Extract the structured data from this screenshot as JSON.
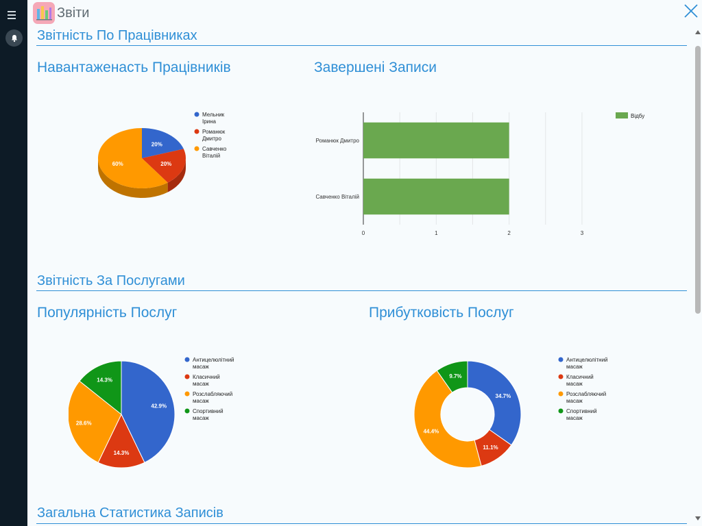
{
  "app": {
    "title": "Звіти"
  },
  "sections": {
    "employees": "Звітність По Працівниках",
    "services": "Звітність За Послугами",
    "general": "Загальна Статистика Записів"
  },
  "chart_data": [
    {
      "id": "workload",
      "type": "pie",
      "title": "Навантаженасть Працівників",
      "categories": [
        "Мельник Ірина",
        "Романюк Дмитро",
        "Савченко Віталій"
      ],
      "values": [
        20,
        20,
        60
      ],
      "labels": [
        "20%",
        "20%",
        "60%"
      ],
      "colors": [
        "#3366cc",
        "#dc3912",
        "#ff9900"
      ],
      "legend": "right"
    },
    {
      "id": "completed",
      "type": "bar",
      "title": "Завершені Записи",
      "categories": [
        "Романюк Дмитро",
        "Савченко Віталій"
      ],
      "series": [
        {
          "name": "Відбувся",
          "values": [
            2,
            2
          ],
          "color": "#6aa84f"
        }
      ],
      "xlim": [
        0,
        3
      ],
      "xticks": [
        "0",
        "1",
        "2",
        "3"
      ],
      "legend": "top-right"
    },
    {
      "id": "popularity",
      "type": "pie",
      "title": "Популярність Послуг",
      "categories": [
        "Антицелюлітний масаж",
        "Класичний масаж",
        "Розслабляючий масаж",
        "Спортивний масаж"
      ],
      "values": [
        42.9,
        14.3,
        28.6,
        14.3
      ],
      "labels": [
        "42.9%",
        "14.3%",
        "28.6%",
        "14.3%"
      ],
      "colors": [
        "#3366cc",
        "#dc3912",
        "#ff9900",
        "#109618"
      ],
      "legend": "right"
    },
    {
      "id": "profitability",
      "type": "pie",
      "title": "Прибутковість Послуг",
      "categories": [
        "Антицелюлітний масаж",
        "Класичний масаж",
        "Розслабляючий масаж",
        "Спортивний масаж"
      ],
      "values": [
        34.7,
        11.1,
        44.4,
        9.7
      ],
      "labels": [
        "34.7%",
        "11.1%",
        "44.4%",
        "9.7%"
      ],
      "colors": [
        "#3366cc",
        "#dc3912",
        "#ff9900",
        "#109618"
      ],
      "legend": "right"
    }
  ]
}
